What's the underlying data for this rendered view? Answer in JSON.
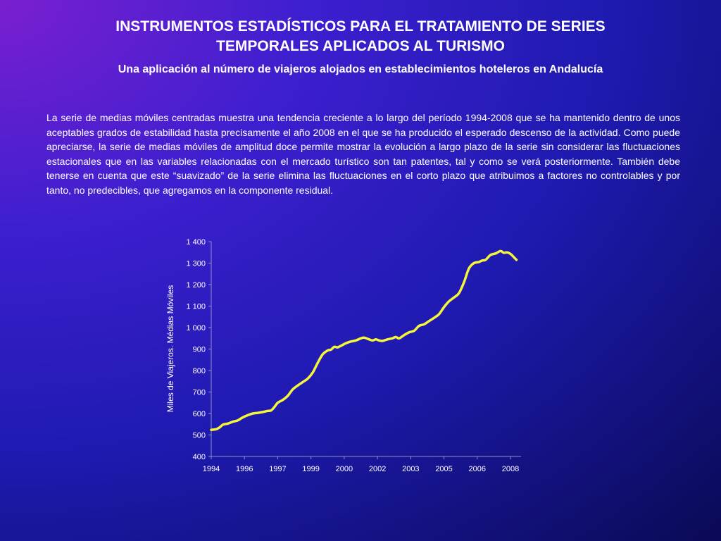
{
  "slide": {
    "title_line1": "INSTRUMENTOS ESTADÍSTICOS PARA EL TRATAMIENTO DE SERIES",
    "title_line2": "TEMPORALES APLICADOS AL TURISMO",
    "subtitle": "Una aplicación al número de viajeros alojados en establecimientos hoteleros en Andalucía",
    "paragraph": "La serie de medias móviles centradas muestra una tendencia creciente a lo largo del período 1994-2008 que se ha mantenido dentro de unos aceptables grados de estabilidad hasta precisamente el año 2008 en el que se ha producido el esperado descenso de la actividad. Como puede apreciarse, la serie de medias móviles de amplitud doce permite mostrar la evolución a largo plazo de la serie sin considerar las fluctuaciones estacionales que en las variables relacionadas con el mercado turístico son tan patentes, tal y como se verá posteriormente. También debe tenerse en cuenta que este “suavizado” de la serie elimina las fluctuaciones en el corto plazo que atribuimos a factores no controlables y por tanto, no predecibles, que  agregamos en la componente residual."
  },
  "chart_data": {
    "type": "line",
    "title": "",
    "xlabel": "",
    "ylabel": "Miles de Viajeros. Médias Móviles",
    "ylim": [
      400,
      1400
    ],
    "yticks": [
      400,
      500,
      600,
      700,
      800,
      900,
      1000,
      1100,
      1200,
      1300,
      1400
    ],
    "ytick_labels": [
      "400",
      "500",
      "600",
      "700",
      "800",
      "900",
      "1 000",
      "1 100",
      "1 200",
      "1 300",
      "1 400"
    ],
    "xtick_labels": [
      "1994",
      "1996",
      "1997",
      "1999",
      "2000",
      "2002",
      "2003",
      "2005",
      "2006",
      "2008"
    ],
    "x_note": "x index runs 0 (first tick 1994) to 9 (last tick 2008), tick labels at integer positions",
    "line_color": "#f5f53a",
    "grid": false,
    "series": [
      {
        "name": "",
        "points": [
          [
            0.0,
            524
          ],
          [
            0.15,
            527
          ],
          [
            0.25,
            535
          ],
          [
            0.35,
            548
          ],
          [
            0.5,
            553
          ],
          [
            0.65,
            562
          ],
          [
            0.8,
            568
          ],
          [
            0.95,
            582
          ],
          [
            1.1,
            592
          ],
          [
            1.25,
            600
          ],
          [
            1.4,
            603
          ],
          [
            1.55,
            607
          ],
          [
            1.7,
            612
          ],
          [
            1.8,
            614
          ],
          [
            1.9,
            630
          ],
          [
            2.0,
            650
          ],
          [
            2.15,
            663
          ],
          [
            2.3,
            682
          ],
          [
            2.45,
            712
          ],
          [
            2.6,
            730
          ],
          [
            2.75,
            746
          ],
          [
            2.9,
            762
          ],
          [
            3.05,
            790
          ],
          [
            3.2,
            835
          ],
          [
            3.35,
            875
          ],
          [
            3.5,
            893
          ],
          [
            3.6,
            897
          ],
          [
            3.7,
            910
          ],
          [
            3.8,
            908
          ],
          [
            3.9,
            915
          ],
          [
            4.05,
            927
          ],
          [
            4.2,
            935
          ],
          [
            4.35,
            940
          ],
          [
            4.5,
            950
          ],
          [
            4.6,
            953
          ],
          [
            4.75,
            945
          ],
          [
            4.85,
            940
          ],
          [
            4.95,
            945
          ],
          [
            5.05,
            940
          ],
          [
            5.15,
            938
          ],
          [
            5.3,
            945
          ],
          [
            5.45,
            950
          ],
          [
            5.55,
            956
          ],
          [
            5.65,
            950
          ],
          [
            5.8,
            965
          ],
          [
            5.95,
            978
          ],
          [
            6.1,
            985
          ],
          [
            6.25,
            1008
          ],
          [
            6.4,
            1015
          ],
          [
            6.55,
            1030
          ],
          [
            6.7,
            1045
          ],
          [
            6.85,
            1062
          ],
          [
            7.0,
            1095
          ],
          [
            7.15,
            1122
          ],
          [
            7.3,
            1140
          ],
          [
            7.45,
            1160
          ],
          [
            7.6,
            1210
          ],
          [
            7.75,
            1275
          ],
          [
            7.9,
            1300
          ],
          [
            8.05,
            1305
          ],
          [
            8.15,
            1312
          ],
          [
            8.25,
            1315
          ],
          [
            8.4,
            1338
          ],
          [
            8.55,
            1345
          ],
          [
            8.7,
            1356
          ],
          [
            8.8,
            1348
          ],
          [
            8.9,
            1350
          ],
          [
            9.0,
            1343
          ],
          [
            9.1,
            1328
          ],
          [
            9.18,
            1315
          ]
        ]
      }
    ]
  }
}
